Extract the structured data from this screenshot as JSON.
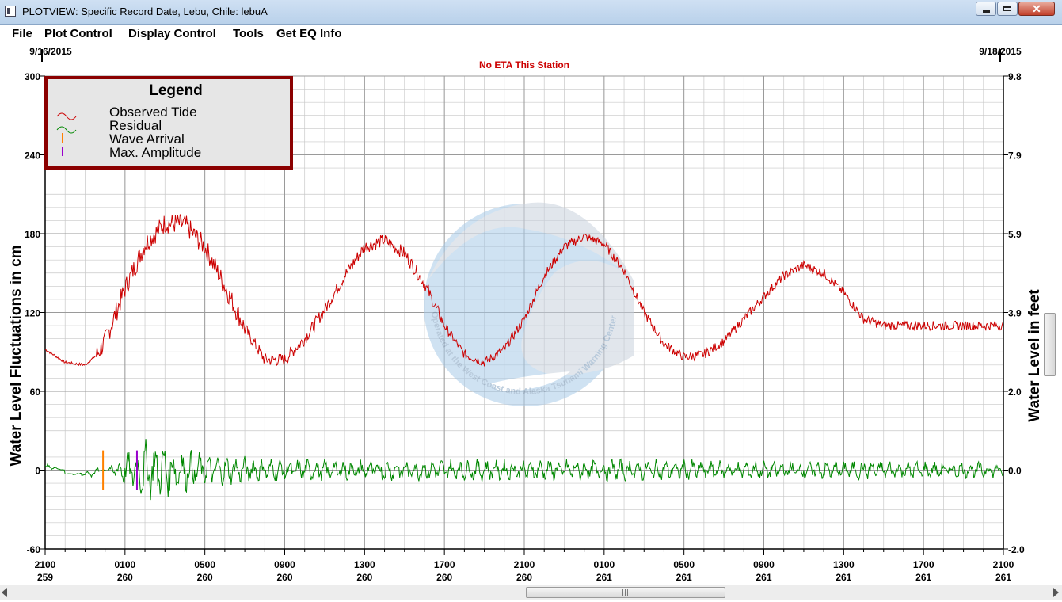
{
  "window": {
    "title": "PLOTVIEW: Specific Record Date, Lebu, Chile: lebuA",
    "close_label": "✕"
  },
  "menu": [
    "File",
    "Plot Control",
    "Display Control",
    "Tools",
    "Get EQ Info"
  ],
  "header": {
    "start_date": "9/16/2015",
    "end_date": "9/18/2015",
    "eta_message": "No ETA This Station"
  },
  "legend": {
    "title": "Legend",
    "items": [
      {
        "label": "Observed Tide",
        "color": "#cc0000",
        "icon": "wave-icon"
      },
      {
        "label": "Residual",
        "color": "#008800",
        "icon": "wave-icon"
      },
      {
        "label": "Wave Arrival",
        "color": "#ff8000",
        "icon": "bar-icon"
      },
      {
        "label": "Max. Amplitude",
        "color": "#9900cc",
        "icon": "bar-icon"
      }
    ]
  },
  "watermark": {
    "text": "Operated at the West Coast and Alaska Tsunami Warning Center"
  },
  "chart_data": {
    "type": "line",
    "ylabel": "Water Level Fluctuations in cm",
    "ylabel_right": "Water Level in feet",
    "ylim": [
      -60,
      300
    ],
    "yticks_left": [
      "300",
      "240",
      "180",
      "120",
      "60",
      "0",
      "-60"
    ],
    "yticks_right": [
      "9.8",
      "7.9",
      "5.9",
      "3.9",
      "2.0",
      "0.0",
      "-2.0"
    ],
    "xticks": [
      {
        "time": "2100",
        "day": "259"
      },
      {
        "time": "0100",
        "day": "260"
      },
      {
        "time": "0500",
        "day": "260"
      },
      {
        "time": "0900",
        "day": "260"
      },
      {
        "time": "1300",
        "day": "260"
      },
      {
        "time": "1700",
        "day": "260"
      },
      {
        "time": "2100",
        "day": "260"
      },
      {
        "time": "0100",
        "day": "261"
      },
      {
        "time": "0500",
        "day": "261"
      },
      {
        "time": "0900",
        "day": "261"
      },
      {
        "time": "1300",
        "day": "261"
      },
      {
        "time": "1700",
        "day": "261"
      },
      {
        "time": "2100",
        "day": "261"
      }
    ],
    "x_hours_range": [
      0,
      48
    ],
    "grid": true,
    "series": [
      {
        "name": "Observed Tide",
        "color": "#cc0000",
        "x": [
          0,
          1,
          2,
          2.6,
          3,
          3.5,
          4,
          5,
          6,
          7,
          8,
          9,
          10,
          11,
          12,
          13,
          14,
          15,
          16,
          17,
          18,
          19,
          20,
          21,
          22,
          23,
          24,
          25,
          26,
          27,
          28,
          29,
          30,
          31,
          32,
          33,
          34,
          35,
          36,
          37,
          38,
          39,
          40,
          41,
          42,
          43,
          44,
          45,
          46,
          47,
          48
        ],
        "y": [
          92,
          82,
          80,
          88,
          98,
          118,
          138,
          172,
          188,
          187,
          170,
          140,
          108,
          84,
          84,
          100,
          122,
          148,
          170,
          175,
          165,
          142,
          110,
          88,
          82,
          92,
          115,
          148,
          170,
          178,
          172,
          152,
          120,
          96,
          86,
          88,
          98,
          115,
          132,
          148,
          156,
          150,
          135,
          115,
          110,
          110,
          110,
          110,
          110,
          110,
          110
        ]
      },
      {
        "name": "Residual",
        "color": "#008800",
        "x": [
          0,
          2.5,
          3,
          4,
          5,
          6,
          7,
          8,
          10,
          12,
          16,
          20,
          24,
          30,
          36,
          42,
          48
        ],
        "y": [
          2,
          -3,
          0,
          12,
          22,
          20,
          16,
          12,
          10,
          8,
          8,
          8,
          8,
          8,
          7,
          7,
          6
        ]
      }
    ],
    "markers": [
      {
        "name": "Wave Arrival",
        "x": 2.9,
        "color": "#ff8000"
      },
      {
        "name": "Max. Amplitude",
        "x": 4.6,
        "color": "#9900cc"
      }
    ]
  }
}
